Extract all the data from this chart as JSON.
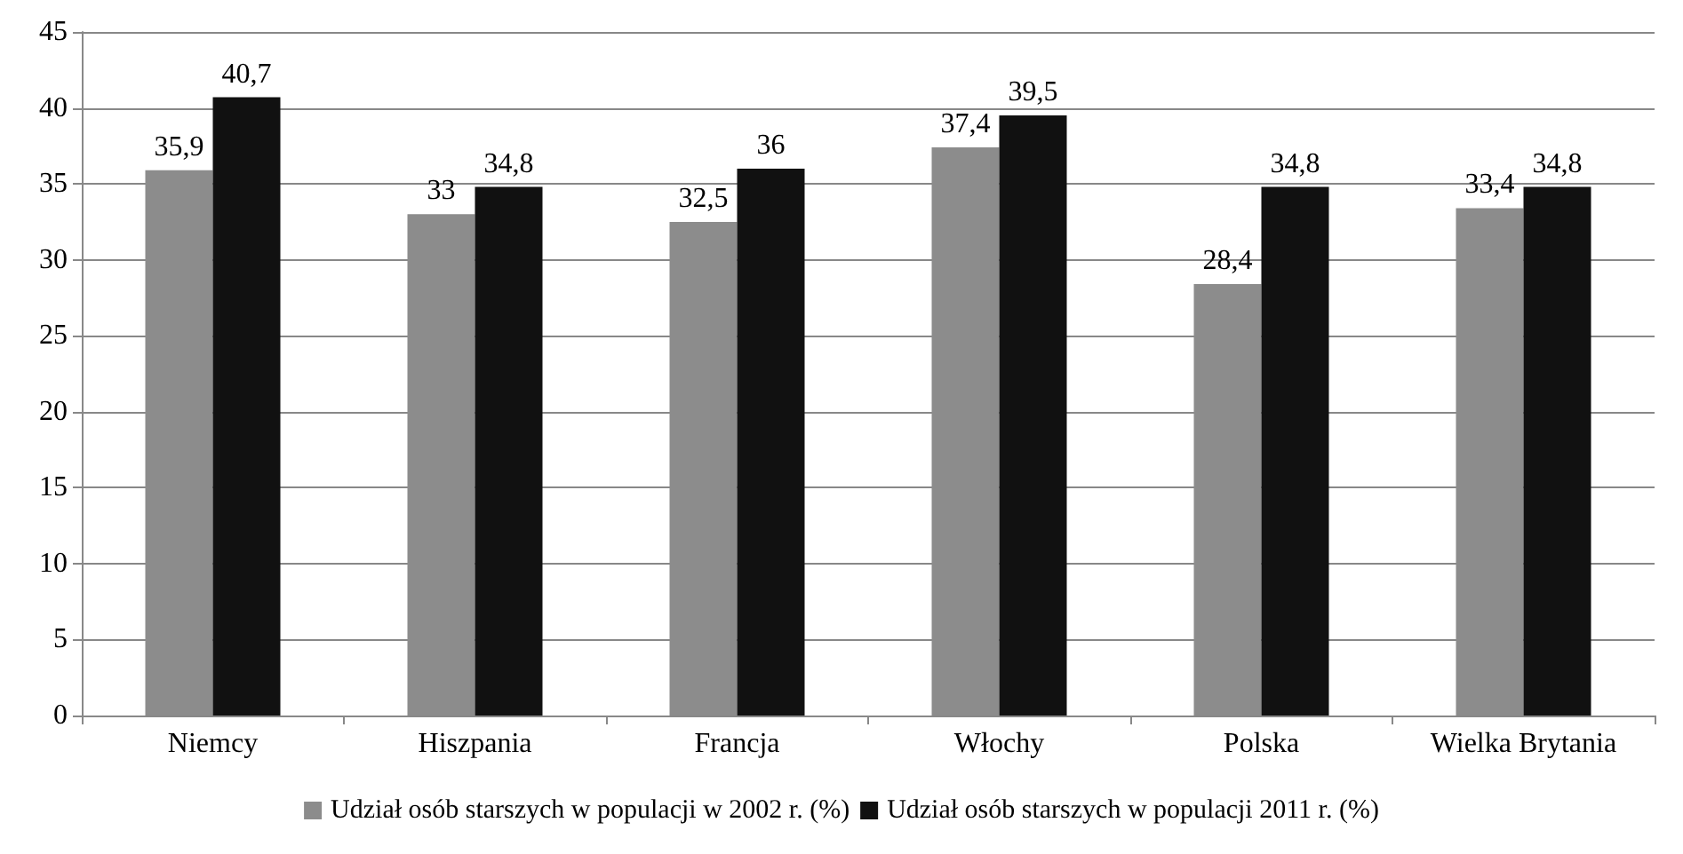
{
  "chart_data": {
    "type": "bar",
    "categories": [
      "Niemcy",
      "Hiszpania",
      "Francja",
      "Włochy",
      "Polska",
      "Wielka Brytania"
    ],
    "series": [
      {
        "name": "Udział osób starszych w populacji w 2002 r. (%)",
        "color": "#8c8c8c",
        "values": [
          35.9,
          33,
          32.5,
          37.4,
          28.4,
          33.4
        ],
        "value_labels": [
          "35,9",
          "33",
          "32,5",
          "37,4",
          "28,4",
          "33,4"
        ]
      },
      {
        "name": "Udział osób starszych w populacji 2011 r. (%)",
        "color": "#111111",
        "values": [
          40.7,
          34.8,
          36,
          39.5,
          34.8,
          34.8
        ],
        "value_labels": [
          "40,7",
          "34,8",
          "36",
          "39,5",
          "34,8",
          "34,8"
        ]
      }
    ],
    "ylim": [
      0,
      45
    ],
    "yticks": [
      0,
      5,
      10,
      15,
      20,
      25,
      30,
      35,
      40,
      45
    ],
    "grid": "y",
    "legend": "bottom"
  }
}
